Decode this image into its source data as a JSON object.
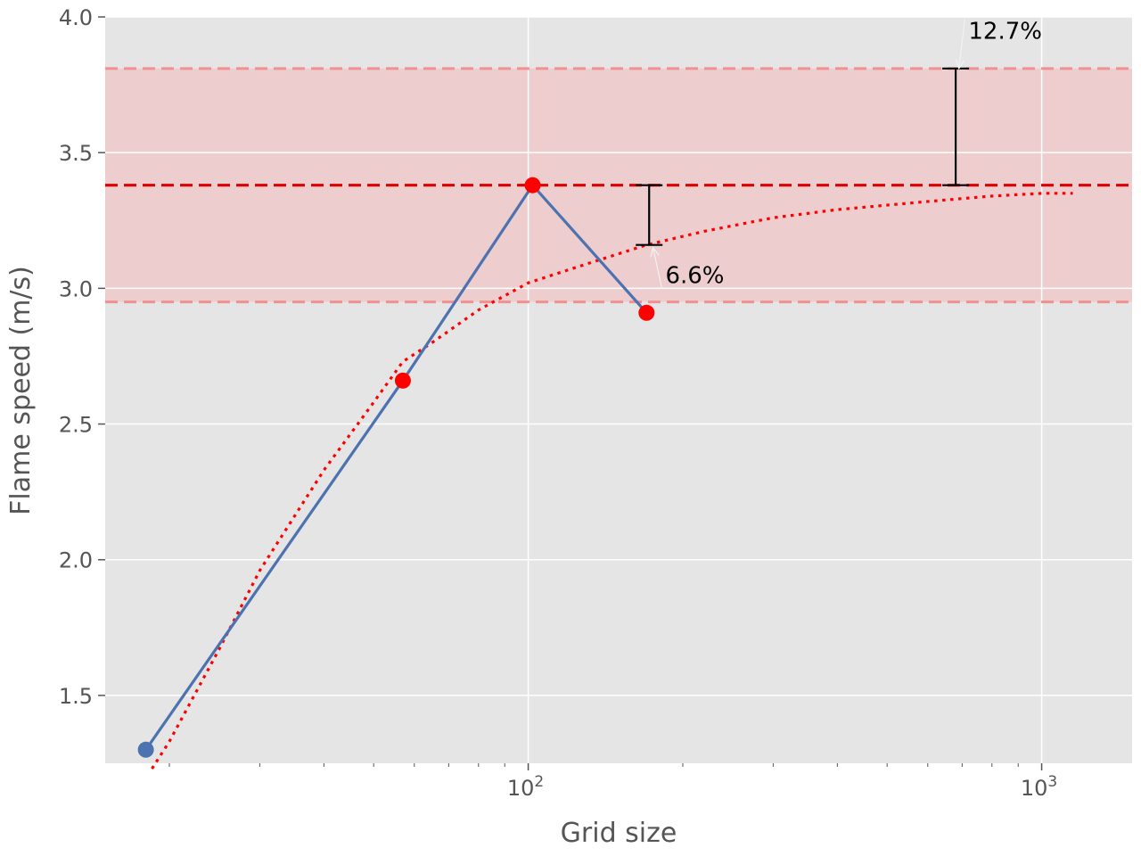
{
  "chart_data": {
    "type": "line",
    "title": "",
    "xlabel": "Grid size",
    "ylabel": "Flame speed (m/s)",
    "xscale": "log",
    "xlim": [
      15,
      1500
    ],
    "ylim": [
      1.25,
      4.0
    ],
    "grid": true,
    "background": "#e5e5e5",
    "x_major_ticks": [
      {
        "value": 100,
        "base": "10",
        "exp": "2"
      },
      {
        "value": 1000,
        "base": "10",
        "exp": "3"
      }
    ],
    "x_minor_ticks": [
      20,
      30,
      40,
      50,
      60,
      70,
      80,
      90,
      200,
      300,
      400,
      500,
      600,
      700,
      800,
      900
    ],
    "y_ticks": [
      {
        "value": 1.5,
        "label": "1.5"
      },
      {
        "value": 2.0,
        "label": "2.0"
      },
      {
        "value": 2.5,
        "label": "2.5"
      },
      {
        "value": 3.0,
        "label": "3.0"
      },
      {
        "value": 3.5,
        "label": "3.5"
      },
      {
        "value": 4.0,
        "label": "4.0"
      }
    ],
    "series": [
      {
        "kind": "line-markers",
        "color": "#4c72b0",
        "x": [
          18,
          57,
          102,
          170
        ],
        "y": [
          1.3,
          2.66,
          3.38,
          2.91
        ],
        "marker_colors": [
          "#4c72b0",
          "#ff0000",
          "#ff0000",
          "#ff0000"
        ]
      },
      {
        "kind": "dotted-fit",
        "color": "#ff0000",
        "x": [
          18.5,
          20,
          25,
          30,
          40,
          50,
          57,
          65,
          80,
          100,
          130,
          170,
          220,
          300,
          400,
          600,
          800,
          1000,
          1150
        ],
        "y": [
          1.23,
          1.33,
          1.67,
          1.96,
          2.33,
          2.58,
          2.73,
          2.8,
          2.92,
          3.02,
          3.09,
          3.16,
          3.21,
          3.26,
          3.29,
          3.32,
          3.34,
          3.35,
          3.35
        ]
      }
    ],
    "reference_lines": {
      "center": {
        "y": 3.38,
        "color": "#dd0000"
      },
      "band_low": {
        "y": 2.95,
        "color": "#f09090"
      },
      "band_high": {
        "y": 3.81,
        "color": "#f09090"
      },
      "band_fill": "#f5b5b8"
    },
    "error_bars": [
      {
        "x": 172,
        "y_low": 3.16,
        "y_high": 3.38
      },
      {
        "x": 680,
        "y_low": 3.38,
        "y_high": 3.81
      }
    ],
    "annotations": [
      {
        "text": "6.6%",
        "x": 185,
        "y": 3.02,
        "arrow_to": {
          "x": 175,
          "y": 3.15
        }
      },
      {
        "text": "12.7%",
        "x": 720,
        "y": 3.92,
        "arrow_to": {
          "x": 690,
          "y": 3.81
        }
      }
    ]
  }
}
